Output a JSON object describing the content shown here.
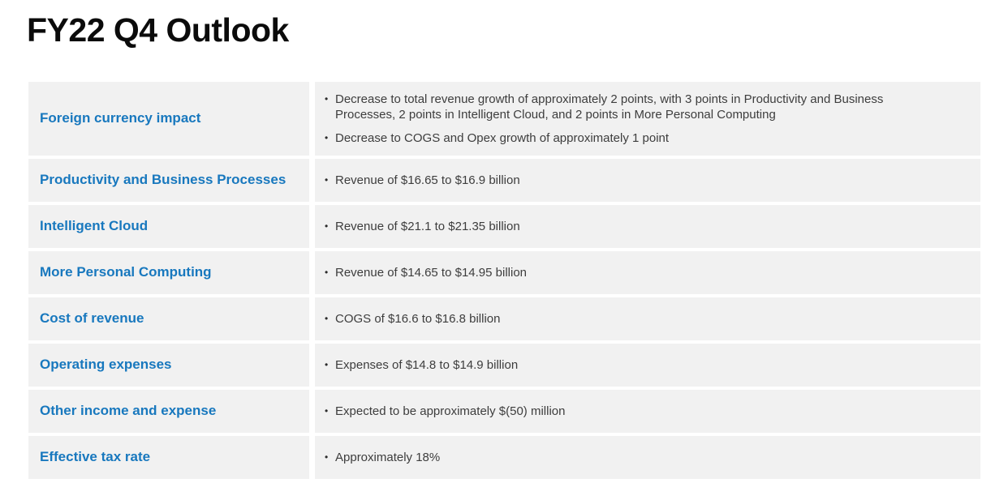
{
  "page": {
    "title": "FY22 Q4 Outlook"
  },
  "colors": {
    "background": "#FFFFFF",
    "row_bg": "#F1F1F1",
    "label_blue": "#1878BE",
    "body_text": "#3D3D3D",
    "title_text": "#0B0B0B"
  },
  "table": {
    "rows": [
      {
        "label": "Foreign currency impact",
        "bullets": [
          "Decrease to total revenue growth of approximately 2 points, with 3 points in Productivity and Business Processes, 2 points in Intelligent Cloud, and 2 points in More Personal Computing",
          "Decrease to COGS and Opex growth of approximately 1 point"
        ]
      },
      {
        "label": "Productivity and Business Processes",
        "bullets": [
          "Revenue of $16.65 to $16.9 billion"
        ]
      },
      {
        "label": "Intelligent Cloud",
        "bullets": [
          "Revenue of $21.1 to $21.35 billion"
        ]
      },
      {
        "label": "More Personal Computing",
        "bullets": [
          "Revenue of $14.65 to $14.95 billion"
        ]
      },
      {
        "label": "Cost of revenue",
        "bullets": [
          "COGS of $16.6 to $16.8 billion"
        ]
      },
      {
        "label": "Operating expenses",
        "bullets": [
          "Expenses of $14.8 to $14.9 billion"
        ]
      },
      {
        "label": "Other income and expense",
        "bullets": [
          "Expected to be approximately $(50) million"
        ]
      },
      {
        "label": "Effective tax rate",
        "bullets": [
          "Approximately 18%"
        ]
      }
    ]
  }
}
